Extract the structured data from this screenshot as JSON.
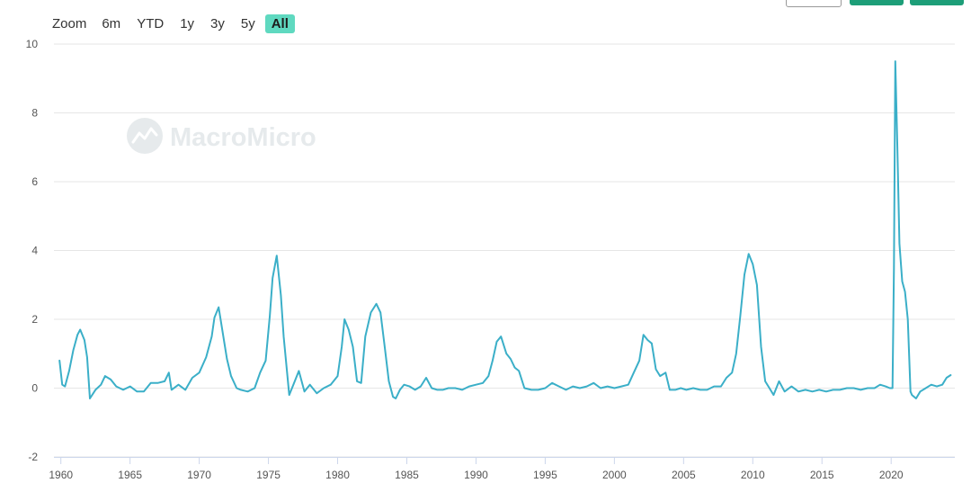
{
  "zoom": {
    "label": "Zoom",
    "buttons": [
      "6m",
      "YTD",
      "1y",
      "3y",
      "5y",
      "All"
    ],
    "active": "All",
    "active_color": "#5fd9c0"
  },
  "watermark": {
    "text": "MacroMicro",
    "icon": "macromicro-logo-icon"
  },
  "colors": {
    "line": "#3bafc8",
    "grid": "#e6e6e6",
    "accent_button": "#1d9e78"
  },
  "chart_data": {
    "type": "line",
    "title": "",
    "xlabel": "",
    "ylabel": "",
    "xlim": [
      1959.5,
      2024.6
    ],
    "ylim": [
      -2,
      10
    ],
    "xticks": [
      1960,
      1965,
      1970,
      1975,
      1980,
      1985,
      1990,
      1995,
      2000,
      2005,
      2010,
      2015,
      2020
    ],
    "yticks": [
      -2,
      0,
      2,
      4,
      6,
      8,
      10
    ],
    "grid": "horizontal",
    "series": [
      {
        "color": "#3bafc8",
        "x": [
          1959.9,
          1960.1,
          1960.3,
          1960.6,
          1960.9,
          1961.2,
          1961.4,
          1961.7,
          1961.9,
          1962.1,
          1962.5,
          1962.9,
          1963.2,
          1963.6,
          1964.0,
          1964.5,
          1965.0,
          1965.5,
          1966.0,
          1966.5,
          1967.0,
          1967.5,
          1967.8,
          1968.0,
          1968.5,
          1969.0,
          1969.5,
          1970.0,
          1970.5,
          1970.9,
          1971.1,
          1971.4,
          1971.7,
          1972.0,
          1972.3,
          1972.7,
          1973.0,
          1973.5,
          1974.0,
          1974.4,
          1974.8,
          1975.1,
          1975.3,
          1975.6,
          1975.9,
          1976.1,
          1976.5,
          1976.8,
          1977.2,
          1977.6,
          1978.0,
          1978.5,
          1979.0,
          1979.5,
          1980.0,
          1980.3,
          1980.5,
          1980.8,
          1981.1,
          1981.4,
          1981.7,
          1982.0,
          1982.4,
          1982.8,
          1983.1,
          1983.4,
          1983.7,
          1984.0,
          1984.2,
          1984.5,
          1984.8,
          1985.2,
          1985.6,
          1986.0,
          1986.4,
          1986.8,
          1987.2,
          1987.6,
          1988.0,
          1988.5,
          1989.0,
          1989.5,
          1990.0,
          1990.5,
          1990.9,
          1991.2,
          1991.5,
          1991.8,
          1992.2,
          1992.5,
          1992.8,
          1993.1,
          1993.5,
          1994.0,
          1994.5,
          1995.0,
          1995.5,
          1996.0,
          1996.5,
          1997.0,
          1997.5,
          1998.0,
          1998.5,
          1999.0,
          1999.5,
          2000.0,
          2000.5,
          2001.0,
          2001.4,
          2001.8,
          2002.1,
          2002.4,
          2002.7,
          2003.0,
          2003.3,
          2003.7,
          2004.0,
          2004.4,
          2004.8,
          2005.2,
          2005.7,
          2006.2,
          2006.7,
          2007.2,
          2007.7,
          2008.1,
          2008.5,
          2008.8,
          2009.1,
          2009.4,
          2009.7,
          2010.0,
          2010.3,
          2010.6,
          2010.9,
          2011.2,
          2011.5,
          2011.9,
          2012.3,
          2012.8,
          2013.3,
          2013.8,
          2014.3,
          2014.8,
          2015.3,
          2015.8,
          2016.3,
          2016.8,
          2017.3,
          2017.8,
          2018.3,
          2018.8,
          2019.2,
          2019.6,
          2019.9,
          2020.1,
          2020.2,
          2020.3,
          2020.45,
          2020.6,
          2020.8,
          2021.0,
          2021.2,
          2021.4,
          2021.5,
          2021.8,
          2022.1,
          2022.5,
          2022.9,
          2023.3,
          2023.7,
          2024.0,
          2024.3
        ],
        "y": [
          0.8,
          0.1,
          0.05,
          0.5,
          1.1,
          1.55,
          1.7,
          1.4,
          0.9,
          -0.3,
          -0.05,
          0.1,
          0.35,
          0.25,
          0.05,
          -0.05,
          0.05,
          -0.1,
          -0.1,
          0.15,
          0.15,
          0.2,
          0.45,
          -0.05,
          0.1,
          -0.05,
          0.3,
          0.45,
          0.9,
          1.5,
          2.05,
          2.35,
          1.6,
          0.85,
          0.35,
          0.0,
          -0.05,
          -0.1,
          0.0,
          0.45,
          0.8,
          2.1,
          3.2,
          3.85,
          2.7,
          1.5,
          -0.2,
          0.1,
          0.5,
          -0.1,
          0.1,
          -0.15,
          0.0,
          0.1,
          0.35,
          1.2,
          2.0,
          1.7,
          1.2,
          0.2,
          0.15,
          1.5,
          2.2,
          2.45,
          2.2,
          1.2,
          0.2,
          -0.25,
          -0.3,
          -0.05,
          0.1,
          0.05,
          -0.05,
          0.05,
          0.3,
          0.0,
          -0.05,
          -0.05,
          0.0,
          0.0,
          -0.05,
          0.05,
          0.1,
          0.15,
          0.35,
          0.8,
          1.35,
          1.5,
          1.0,
          0.85,
          0.6,
          0.5,
          0.0,
          -0.05,
          -0.05,
          0.0,
          0.15,
          0.05,
          -0.05,
          0.05,
          0.0,
          0.05,
          0.15,
          0.0,
          0.05,
          0.0,
          0.05,
          0.1,
          0.45,
          0.8,
          1.55,
          1.4,
          1.3,
          0.55,
          0.35,
          0.45,
          -0.05,
          -0.05,
          0.0,
          -0.05,
          0.0,
          -0.05,
          -0.05,
          0.05,
          0.05,
          0.3,
          0.45,
          1.0,
          2.1,
          3.3,
          3.9,
          3.6,
          3.0,
          1.2,
          0.2,
          0.0,
          -0.2,
          0.2,
          -0.1,
          0.05,
          -0.1,
          -0.05,
          -0.1,
          -0.05,
          -0.1,
          -0.05,
          -0.05,
          0.0,
          0.0,
          -0.05,
          0.0,
          0.0,
          0.1,
          0.05,
          0.0,
          0.0,
          3.5,
          9.5,
          7.0,
          4.2,
          3.1,
          2.8,
          2.0,
          -0.1,
          -0.2,
          -0.3,
          -0.1,
          0.0,
          0.1,
          0.05,
          0.1,
          0.3,
          0.38
        ]
      }
    ]
  }
}
